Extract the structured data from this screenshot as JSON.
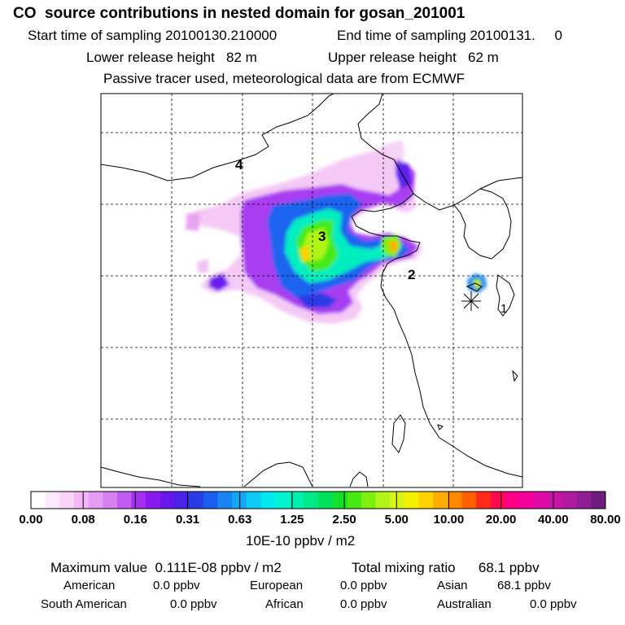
{
  "header": {
    "title": "CO  source contributions in nested domain for gosan_201001",
    "start_label": "Start time of sampling 20100130.210000",
    "end_label": "End time of sampling 20100131.     0",
    "lower_release": "Lower release height   82 m",
    "upper_release": "Upper release height   62 m",
    "tracer_note": "Passive tracer used, meteorological data are from ECMWF"
  },
  "map": {
    "marker_labels": [
      "1",
      "2",
      "3",
      "4"
    ]
  },
  "colorbar": {
    "tick_labels": [
      "0.00",
      "0.08",
      "0.16",
      "0.31",
      "0.63",
      "1.25",
      "2.50",
      "5.00",
      "10.00",
      "20.00",
      "40.00",
      "80.00"
    ],
    "unit": "10E-10 ppbv / m2",
    "colors": [
      "#ffffff",
      "#fde9fd",
      "#f9d3f9",
      "#f3b8f5",
      "#e79cf3",
      "#d680f2",
      "#c15af2",
      "#a62ef2",
      "#8a18f0",
      "#6818ec",
      "#4a22e8",
      "#2a3ae4",
      "#1a5ef0",
      "#1a84f4",
      "#14a8f6",
      "#0ccaf4",
      "#00e8f0",
      "#00f2d0",
      "#00eeae",
      "#00e888",
      "#00e05a",
      "#14e22a",
      "#46ea12",
      "#7ef010",
      "#b0f418",
      "#d8f41c",
      "#f4f000",
      "#ffd200",
      "#ffae00",
      "#ff8800",
      "#ff5e00",
      "#ff2a1a",
      "#ff0a4a",
      "#ff0086",
      "#f2009e",
      "#de0aa8",
      "#c814a6",
      "#b01aa0",
      "#921c94",
      "#6e1c80"
    ]
  },
  "stats": {
    "max_value": "Maximum value  0.111E-08 ppbv / m2",
    "total_mixing": "Total mixing ratio      68.1 ppbv"
  },
  "regions": {
    "american": "American",
    "american_value": "0.0 ppbv",
    "european": "European",
    "european_value": "0.0 ppbv",
    "asian": "Asian",
    "asian_value": "68.1 ppbv",
    "south_american": "South American",
    "south_american_value": "0.0 ppbv",
    "african": "African",
    "african_value": "0.0 ppbv",
    "australian": "Australian",
    "australian_value": "0.0 ppbv"
  }
}
